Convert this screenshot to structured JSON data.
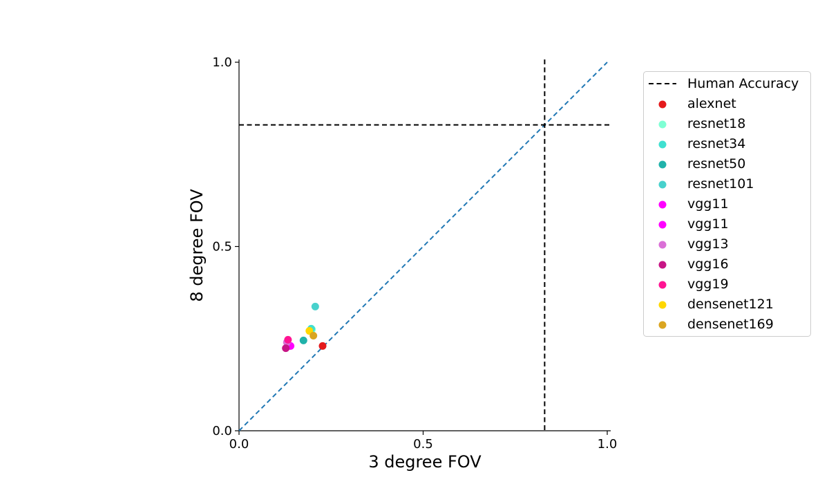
{
  "chart_data": {
    "type": "scatter",
    "xlabel": "3 degree FOV",
    "ylabel": "8 degree FOV",
    "xlim": [
      0.0,
      1.0
    ],
    "ylim": [
      0.0,
      1.0
    ],
    "xticks": [
      "0.0",
      "0.5",
      "1.0"
    ],
    "yticks": [
      "0.0",
      "0.5",
      "1.0"
    ],
    "grid": false,
    "legend_position": "outside-right",
    "reference_lines": {
      "human_accuracy": {
        "label": "Human Accuracy",
        "x": 0.83,
        "y": 0.83,
        "style": "dashed",
        "color": "#000000"
      },
      "diagonal": {
        "from": [
          0,
          0
        ],
        "to": [
          1,
          1
        ],
        "style": "dashed",
        "color": "#1f77b4"
      }
    },
    "series": [
      {
        "name": "alexnet",
        "color": "#e41a1c",
        "x": 0.227,
        "y": 0.23
      },
      {
        "name": "resnet18",
        "color": "#7fffd4",
        "x": 0.198,
        "y": 0.275
      },
      {
        "name": "resnet34",
        "color": "#40e0d0",
        "x": 0.196,
        "y": 0.277
      },
      {
        "name": "resnet50",
        "color": "#20b2aa",
        "x": 0.175,
        "y": 0.245
      },
      {
        "name": "resnet101",
        "color": "#48d1cc",
        "x": 0.207,
        "y": 0.337
      },
      {
        "name": "vgg11",
        "color": "#ff00ff",
        "x": 0.137,
        "y": 0.23
      },
      {
        "name": "vgg11",
        "color": "#ff00ff",
        "x": 0.14,
        "y": 0.23
      },
      {
        "name": "vgg13",
        "color": "#da70d6",
        "x": 0.13,
        "y": 0.24
      },
      {
        "name": "vgg16",
        "color": "#c71585",
        "x": 0.127,
        "y": 0.224
      },
      {
        "name": "vgg19",
        "color": "#ff1493",
        "x": 0.133,
        "y": 0.247
      },
      {
        "name": "densenet121",
        "color": "#ffd700",
        "x": 0.191,
        "y": 0.271
      },
      {
        "name": "densenet169",
        "color": "#daa520",
        "x": 0.202,
        "y": 0.258
      }
    ]
  }
}
